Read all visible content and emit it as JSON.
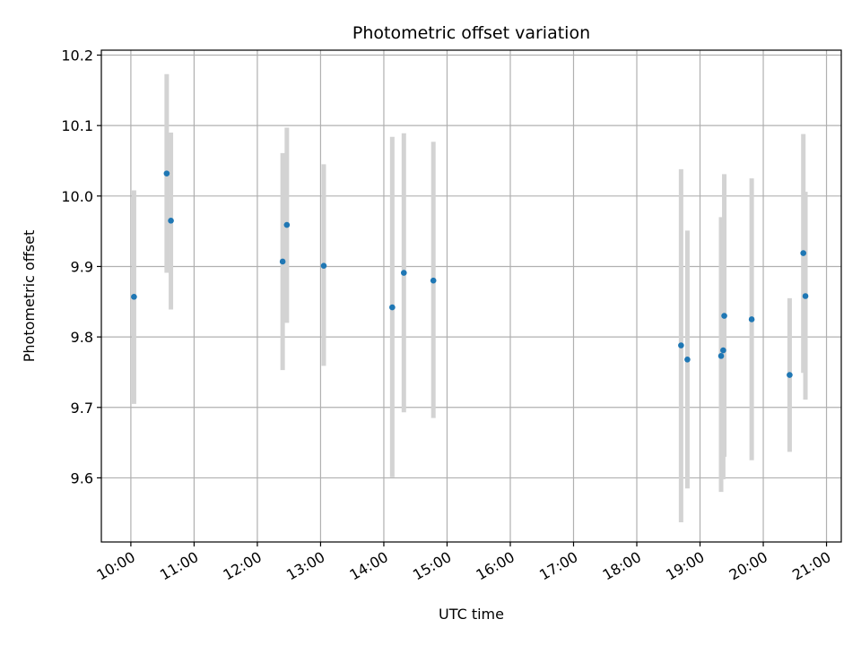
{
  "chart_data": {
    "type": "scatter",
    "title": "Photometric offset variation",
    "xlabel": "UTC time",
    "ylabel": "Photometric offset",
    "grid": true,
    "legend": "none",
    "xlim": [
      "09:32",
      "21:14"
    ],
    "ylim": [
      9.509,
      10.207
    ],
    "x_ticks": [
      "10:00",
      "11:00",
      "12:00",
      "13:00",
      "14:00",
      "15:00",
      "16:00",
      "17:00",
      "18:00",
      "19:00",
      "20:00",
      "21:00"
    ],
    "y_ticks": [
      "9.6",
      "9.7",
      "9.8",
      "9.9",
      "10.0",
      "10.1",
      "10.2"
    ],
    "colors": {
      "point": "#1f77b4",
      "errorbar": "#d3d3d3",
      "grid": "#b0b0b0",
      "axes": "#000000"
    },
    "points": [
      {
        "x": "10:03",
        "y": 9.857,
        "ylow": 9.705,
        "yhigh": 10.008
      },
      {
        "x": "10:34",
        "y": 10.032,
        "ylow": 9.891,
        "yhigh": 10.173
      },
      {
        "x": "10:38",
        "y": 9.965,
        "ylow": 9.839,
        "yhigh": 10.09
      },
      {
        "x": "12:24",
        "y": 9.907,
        "ylow": 9.753,
        "yhigh": 10.061
      },
      {
        "x": "12:28",
        "y": 9.959,
        "ylow": 9.82,
        "yhigh": 10.097
      },
      {
        "x": "13:03",
        "y": 9.901,
        "ylow": 9.759,
        "yhigh": 10.045
      },
      {
        "x": "14:08",
        "y": 9.842,
        "ylow": 9.601,
        "yhigh": 10.084
      },
      {
        "x": "14:19",
        "y": 9.891,
        "ylow": 9.693,
        "yhigh": 10.089
      },
      {
        "x": "14:47",
        "y": 9.88,
        "ylow": 9.685,
        "yhigh": 10.077
      },
      {
        "x": "18:42",
        "y": 9.788,
        "ylow": 9.537,
        "yhigh": 10.038
      },
      {
        "x": "18:48",
        "y": 9.768,
        "ylow": 9.585,
        "yhigh": 9.951
      },
      {
        "x": "19:20",
        "y": 9.773,
        "ylow": 9.58,
        "yhigh": 9.97
      },
      {
        "x": "19:22",
        "y": 9.781,
        "ylow": 9.598,
        "yhigh": 9.962
      },
      {
        "x": "19:23",
        "y": 9.83,
        "ylow": 9.63,
        "yhigh": 10.031
      },
      {
        "x": "19:49",
        "y": 9.825,
        "ylow": 9.625,
        "yhigh": 10.025
      },
      {
        "x": "20:25",
        "y": 9.746,
        "ylow": 9.637,
        "yhigh": 9.855
      },
      {
        "x": "20:38",
        "y": 9.919,
        "ylow": 9.749,
        "yhigh": 10.088
      },
      {
        "x": "20:40",
        "y": 9.858,
        "ylow": 9.711,
        "yhigh": 10.006
      }
    ]
  }
}
